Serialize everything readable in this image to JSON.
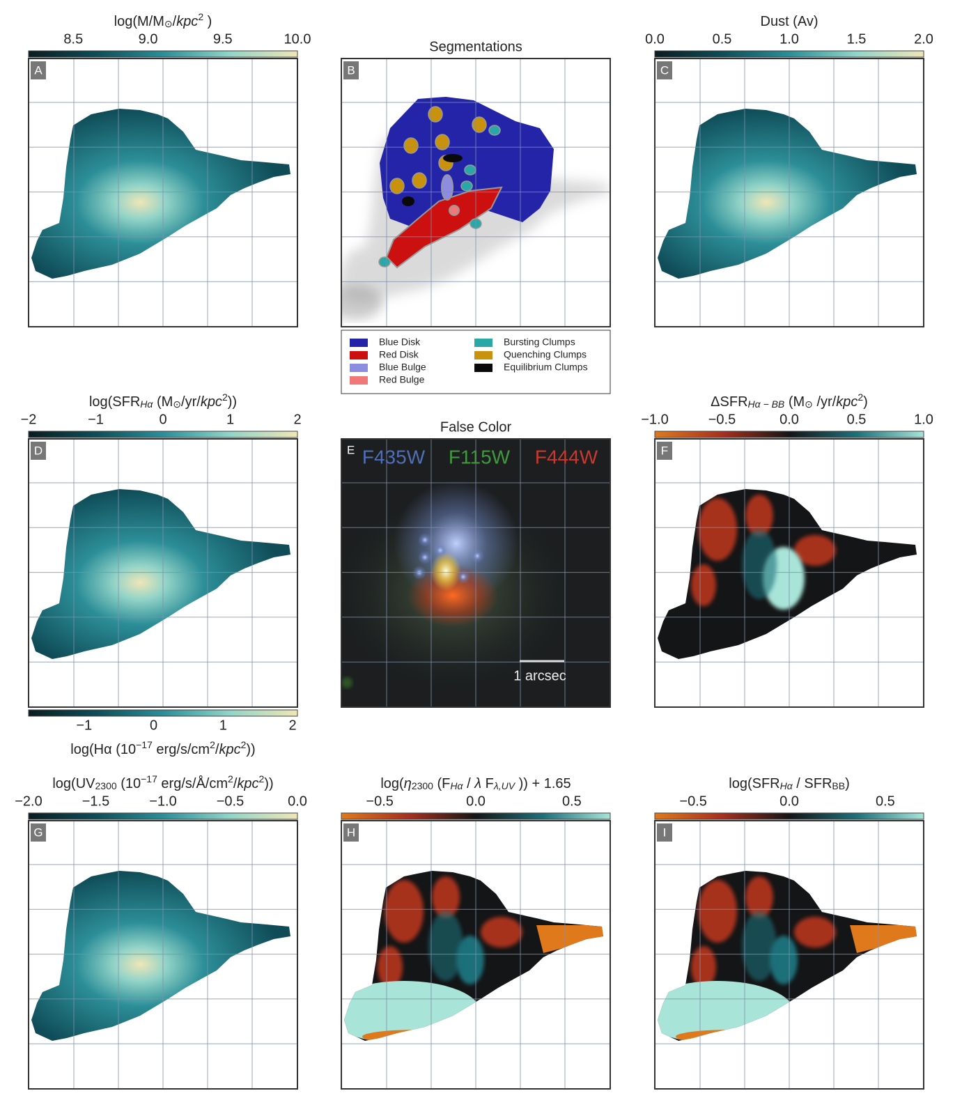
{
  "colormaps": {
    "teal": [
      "#0b1c21",
      "#0f4c57",
      "#2c8e98",
      "#93d4c8",
      "#efe6b6"
    ],
    "diverging": [
      "#e0791c",
      "#a7301f",
      "#141516",
      "#1f6f79",
      "#a8e4d8"
    ]
  },
  "panels": [
    {
      "letter": "A",
      "colorbar": {
        "cmap": "teal",
        "lim": [
          8.2,
          10.0
        ],
        "title": [
          {
            "t": "log(M/M"
          },
          {
            "t": "⊙",
            "s": "sub"
          },
          {
            "t": "/"
          },
          {
            "t": "kpc",
            "s": "it"
          },
          {
            "t": "2",
            "s": "sup"
          },
          {
            "t": " )"
          }
        ],
        "ticks": [
          8.5,
          {
            "value": 9,
            "label": "9.0"
          },
          9.5,
          {
            "value": 10,
            "label": "10.0"
          }
        ]
      }
    },
    {
      "letter": "B",
      "title": "Segmentations",
      "legend": [
        {
          "name": "Blue Disk",
          "color": "#2424a8"
        },
        {
          "name": "Red Disk",
          "color": "#cc1010"
        },
        {
          "name": "Blue Bulge",
          "color": "#8c8ce0"
        },
        {
          "name": "Red Bulge",
          "color": "#f07878"
        },
        {
          "name": "Bursting Clumps",
          "color": "#2aa8a8"
        },
        {
          "name": "Quenching Clumps",
          "color": "#c8920c"
        },
        {
          "name": "Equilibrium Clumps",
          "color": "#0a0a0a"
        }
      ]
    },
    {
      "letter": "C",
      "colorbar": {
        "cmap": "teal",
        "lim": [
          0,
          2
        ],
        "title": [
          {
            "t": "Dust (Av)"
          }
        ],
        "ticks": [
          {
            "value": 0,
            "label": "0.0"
          },
          0.5,
          {
            "value": 1,
            "label": "1.0"
          },
          1.5,
          {
            "value": 2,
            "label": "2.0"
          }
        ]
      }
    },
    {
      "letter": "D",
      "colorbar": {
        "cmap": "teal",
        "lim": [
          -2,
          2
        ],
        "title": [
          {
            "t": "log(SFR"
          },
          {
            "t": "Hα",
            "s": "sub"
          },
          {
            "t": " (M"
          },
          {
            "t": "⊙",
            "s": "sub"
          },
          {
            "t": "/yr/"
          },
          {
            "t": "kpc",
            "s": "it"
          },
          {
            "t": "2",
            "s": "sup"
          },
          {
            "t": "))"
          }
        ],
        "ticks": [
          {
            "value": -2,
            "label": "−2"
          },
          {
            "value": -1,
            "label": "−1"
          },
          0,
          1,
          2
        ]
      },
      "colorbar_bottom": {
        "cmap": "teal",
        "lim": [
          -1.8,
          2.07
        ],
        "title": [
          {
            "t": "log(Hα (10"
          },
          {
            "t": "−17",
            "s": "sup"
          },
          {
            "t": " erg/s/cm"
          },
          {
            "t": "2",
            "s": "sup"
          },
          {
            "t": "/"
          },
          {
            "t": "kpc",
            "s": "it"
          },
          {
            "t": "2",
            "s": "sup"
          },
          {
            "t": "))"
          }
        ],
        "ticks": [
          {
            "value": -1,
            "label": "−1"
          },
          0,
          1,
          2
        ]
      }
    },
    {
      "letter": "E",
      "title": "False Color",
      "bands": [
        {
          "name": "F435W",
          "color": "#4f6fb8"
        },
        {
          "name": "F115W",
          "color": "#3f9a3f"
        },
        {
          "name": "F444W",
          "color": "#c83a2e"
        }
      ],
      "scalebar": "1 arcsec"
    },
    {
      "letter": "F",
      "colorbar": {
        "cmap": "diverging",
        "lim": [
          -1,
          1
        ],
        "title": [
          {
            "t": "ΔSFR"
          },
          {
            "t": "Hα − BB",
            "s": "sub"
          },
          {
            "t": " (M"
          },
          {
            "t": "⊙",
            "s": "sub"
          },
          {
            "t": " /yr/"
          },
          {
            "t": "kpc",
            "s": "it"
          },
          {
            "t": "2",
            "s": "sup"
          },
          {
            "t": ")"
          }
        ],
        "ticks": [
          {
            "value": -1,
            "label": "−1.0"
          },
          {
            "value": -0.5,
            "label": "−0.5"
          },
          {
            "value": 0,
            "label": "0.0"
          },
          0.5,
          {
            "value": 1,
            "label": "1.0"
          }
        ]
      }
    },
    {
      "letter": "G",
      "colorbar": {
        "cmap": "teal",
        "lim": [
          -2,
          0
        ],
        "title": [
          {
            "t": "log(UV"
          },
          {
            "t": "2300",
            "s": "sub"
          },
          {
            "t": " (10"
          },
          {
            "t": "−17",
            "s": "sup"
          },
          {
            "t": " erg/s/Å/cm"
          },
          {
            "t": "2",
            "s": "sup"
          },
          {
            "t": "/"
          },
          {
            "t": "kpc",
            "s": "it"
          },
          {
            "t": "2",
            "s": "sup"
          },
          {
            "t": "))"
          }
        ],
        "ticks": [
          {
            "value": -2,
            "label": "−2.0"
          },
          {
            "value": -1.5,
            "label": "−1.5"
          },
          {
            "value": -1,
            "label": "−1.0"
          },
          {
            "value": -0.5,
            "label": "−0.5"
          },
          {
            "value": 0,
            "label": "0.0"
          }
        ]
      }
    },
    {
      "letter": "H",
      "colorbar": {
        "cmap": "diverging",
        "lim": [
          -0.7,
          0.7
        ],
        "title": [
          {
            "t": "log("
          },
          {
            "t": "η",
            "s": "it"
          },
          {
            "t": "2300",
            "s": "sub"
          },
          {
            "t": " (F"
          },
          {
            "t": "Hα",
            "s": "sub"
          },
          {
            "t": " / "
          },
          {
            "t": "λ",
            "s": "it"
          },
          {
            "t": " F"
          },
          {
            "t": "λ,UV",
            "s": "sub"
          },
          {
            "t": " )) + 1.65"
          }
        ],
        "ticks": [
          {
            "value": -0.5,
            "label": "−0.5"
          },
          {
            "value": 0,
            "label": "0.0"
          },
          0.5
        ]
      }
    },
    {
      "letter": "I",
      "colorbar": {
        "cmap": "diverging",
        "lim": [
          -0.7,
          0.7
        ],
        "title": [
          {
            "t": "log(SFR"
          },
          {
            "t": "Hα",
            "s": "sub"
          },
          {
            "t": " / SFR"
          },
          {
            "t": "BB",
            "s": "sub"
          },
          {
            "t": ")"
          }
        ],
        "ticks": [
          {
            "value": -0.5,
            "label": "−0.5"
          },
          {
            "value": 0,
            "label": "0.0"
          },
          0.5
        ]
      }
    }
  ]
}
